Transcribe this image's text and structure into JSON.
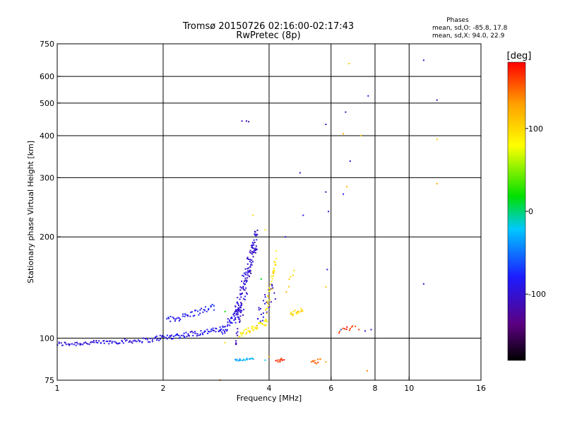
{
  "chart_data": {
    "type": "scatter",
    "title_line1": "Tromsø 20150726 02:16:00-02:17:43",
    "title_line2": "RwPretec (8p)",
    "xlabel": "Frequency [MHz]",
    "ylabel": "Stationary phase Virtual Height [km]",
    "x_scale": "log",
    "y_scale": "log",
    "xlim": [
      1,
      16
    ],
    "ylim": [
      75,
      750
    ],
    "x_ticks": [
      1,
      2,
      4,
      6,
      8,
      10,
      16
    ],
    "x_tick_labels": [
      "1",
      "2",
      "4",
      "6",
      "8",
      "10",
      "16"
    ],
    "y_ticks": [
      75,
      100,
      200,
      300,
      400,
      500,
      600,
      750
    ],
    "y_tick_labels": [
      "75",
      "100",
      "200",
      "300",
      "400",
      "500",
      "600",
      "750"
    ],
    "grid": true,
    "phases_box": {
      "title": "Phases",
      "line_o": "mean, sd,O: -85.8, 17.8",
      "line_x": "mean, sd,X:  94.0, 22.9"
    },
    "colorbar": {
      "label": "[deg]",
      "range": [
        -180,
        180
      ],
      "ticks": [
        100,
        0,
        -100
      ],
      "tick_labels": [
        "100",
        "0",
        "-100"
      ],
      "colors": [
        "#000000",
        "#5b0080",
        "#1c1cff",
        "#00c8ff",
        "#00e000",
        "#ffff00",
        "#ffa000",
        "#ff0000"
      ]
    },
    "series": [
      {
        "name": "O-mode trace (blue)",
        "segments": [
          {
            "f0": 1.0,
            "f1": 1.9,
            "h0": 96,
            "h1": 99,
            "n": 85,
            "phase": -95,
            "jitter": 1.5
          },
          {
            "f0": 1.9,
            "f1": 2.9,
            "h0": 100,
            "h1": 106,
            "n": 70,
            "phase": -88,
            "jitter": 2.0
          },
          {
            "f0": 2.05,
            "f1": 2.8,
            "h0": 113,
            "h1": 124,
            "n": 45,
            "phase": -82,
            "jitter": 2.5
          },
          {
            "f0": 2.9,
            "f1": 3.35,
            "h0": 104,
            "h1": 125,
            "n": 50,
            "phase": -92,
            "jitter": 4.0
          },
          {
            "f0": 3.2,
            "f1": 3.7,
            "h0": 110,
            "h1": 200,
            "n": 140,
            "phase": -100,
            "jitter": 18.0
          },
          {
            "f0": 3.7,
            "f1": 4.15,
            "h0": 118,
            "h1": 140,
            "n": 30,
            "phase": -95,
            "jitter": 10.0
          }
        ],
        "points": [
          {
            "x": 3.35,
            "y": 442,
            "phase": -110
          },
          {
            "x": 3.45,
            "y": 442,
            "phase": -110
          },
          {
            "x": 3.5,
            "y": 440,
            "phase": -110
          },
          {
            "x": 4.9,
            "y": 310,
            "phase": -100
          },
          {
            "x": 5.0,
            "y": 232,
            "phase": -95
          },
          {
            "x": 4.45,
            "y": 200,
            "phase": -100
          },
          {
            "x": 5.8,
            "y": 432,
            "phase": -105
          },
          {
            "x": 5.8,
            "y": 272,
            "phase": -100
          },
          {
            "x": 5.9,
            "y": 238,
            "phase": -100
          },
          {
            "x": 5.85,
            "y": 160,
            "phase": -95
          },
          {
            "x": 6.6,
            "y": 470,
            "phase": -105
          },
          {
            "x": 6.5,
            "y": 268,
            "phase": -85
          },
          {
            "x": 6.8,
            "y": 336,
            "phase": -100
          },
          {
            "x": 7.65,
            "y": 525,
            "phase": -90
          },
          {
            "x": 11.0,
            "y": 670,
            "phase": -105
          },
          {
            "x": 12.0,
            "y": 510,
            "phase": -100
          },
          {
            "x": 11.0,
            "y": 145,
            "phase": -110
          },
          {
            "x": 7.8,
            "y": 106,
            "phase": -90
          }
        ]
      },
      {
        "name": "X-mode trace (yellow)",
        "segments": [
          {
            "f0": 3.3,
            "f1": 3.95,
            "h0": 103,
            "h1": 112,
            "n": 40,
            "phase": 90,
            "jitter": 2.0
          },
          {
            "f0": 3.9,
            "f1": 4.2,
            "h0": 115,
            "h1": 175,
            "n": 35,
            "phase": 95,
            "jitter": 8.0
          },
          {
            "f0": 4.6,
            "f1": 5.0,
            "h0": 118,
            "h1": 122,
            "n": 18,
            "phase": 100,
            "jitter": 2.0
          },
          {
            "f0": 4.5,
            "f1": 4.7,
            "h0": 140,
            "h1": 160,
            "n": 6,
            "phase": 110,
            "jitter": 4.0
          }
        ],
        "points": [
          {
            "x": 3.6,
            "y": 232,
            "phase": 100
          },
          {
            "x": 6.75,
            "y": 655,
            "phase": 110
          },
          {
            "x": 6.5,
            "y": 405,
            "phase": 120
          },
          {
            "x": 7.3,
            "y": 400,
            "phase": 115
          },
          {
            "x": 6.65,
            "y": 282,
            "phase": 120
          },
          {
            "x": 12.0,
            "y": 390,
            "phase": 110
          },
          {
            "x": 12.0,
            "y": 288,
            "phase": 125
          },
          {
            "x": 5.8,
            "y": 142,
            "phase": 110
          },
          {
            "x": 3.0,
            "y": 97,
            "phase": 100
          },
          {
            "x": 3.9,
            "y": 210,
            "phase": 90
          }
        ]
      },
      {
        "name": "Low echoes (cyan / red / orange)",
        "segments": [
          {
            "f0": 3.2,
            "f1": 3.6,
            "h0": 86,
            "h1": 87,
            "n": 18,
            "phase": -30,
            "jitter": 0.5
          },
          {
            "f0": 4.2,
            "f1": 4.4,
            "h0": 85,
            "h1": 87,
            "n": 10,
            "phase": 170,
            "jitter": 1.0
          },
          {
            "f0": 5.3,
            "f1": 5.6,
            "h0": 84,
            "h1": 87,
            "n": 10,
            "phase": 150,
            "jitter": 1.5
          },
          {
            "f0": 6.3,
            "f1": 7.0,
            "h0": 105,
            "h1": 108,
            "n": 12,
            "phase": 165,
            "jitter": 1.5
          }
        ],
        "points": [
          {
            "x": 6.4,
            "y": 106,
            "phase": -40
          },
          {
            "x": 4.0,
            "y": 88,
            "phase": 130
          },
          {
            "x": 3.9,
            "y": 86,
            "phase": -20
          },
          {
            "x": 2.9,
            "y": 75,
            "phase": 140
          },
          {
            "x": 7.6,
            "y": 80,
            "phase": 140
          },
          {
            "x": 5.8,
            "y": 85,
            "phase": 125
          },
          {
            "x": 7.2,
            "y": 106,
            "phase": 160
          },
          {
            "x": 7.5,
            "y": 105,
            "phase": -95
          },
          {
            "x": 3.0,
            "y": 120,
            "phase": 20
          },
          {
            "x": 3.8,
            "y": 150,
            "phase": 10
          }
        ]
      }
    ]
  }
}
